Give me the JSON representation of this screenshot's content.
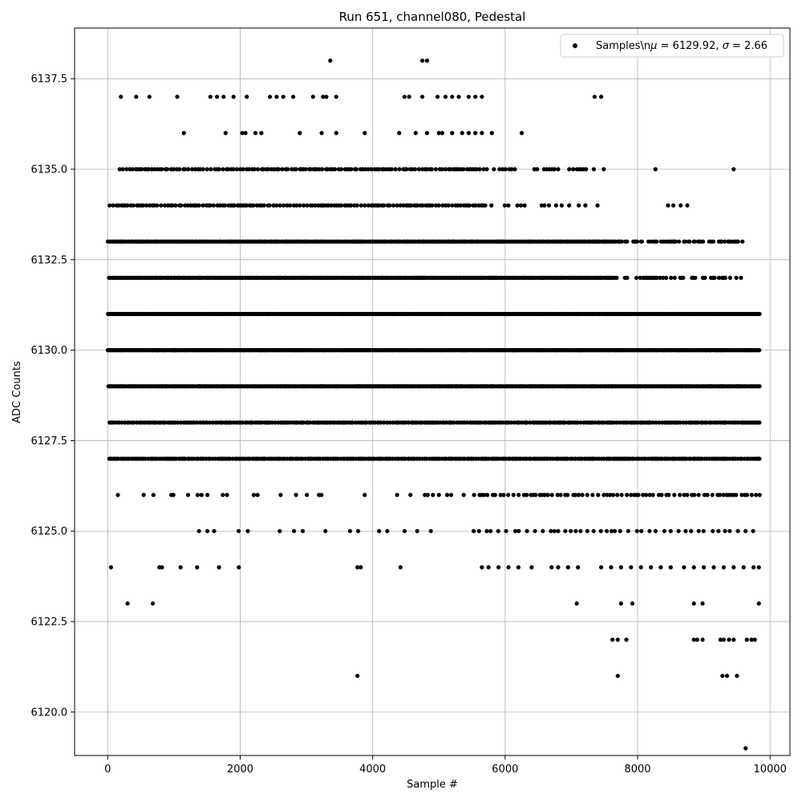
{
  "chart_data": {
    "type": "scatter",
    "title": "Run 651, channel080, Pedestal",
    "xlabel": "Sample #",
    "ylabel": "ADC Counts",
    "xlim": [
      -500,
      10300
    ],
    "ylim": [
      6118.8,
      6138.9
    ],
    "xticks": [
      0,
      2000,
      4000,
      6000,
      8000,
      10000
    ],
    "xtick_labels": [
      "0",
      "2000",
      "4000",
      "6000",
      "8000",
      "10000"
    ],
    "yticks": [
      6120.0,
      6122.5,
      6125.0,
      6127.5,
      6130.0,
      6132.5,
      6135.0,
      6137.5
    ],
    "ytick_labels": [
      "6120.0",
      "6122.5",
      "6125.0",
      "6127.5",
      "6130.0",
      "6132.5",
      "6135.0",
      "6137.5"
    ],
    "grid": true,
    "legend_position": "top-right",
    "marker_color": "#000000",
    "series": [
      {
        "name": "Samples\\n$\\mu$ = 6129.92, $\\sigma$ = 2.66",
        "x_range": [
          0,
          9850
        ],
        "description_levels": [
          6119,
          6121,
          6122,
          6123,
          6124,
          6125,
          6126,
          6127,
          6128,
          6129,
          6130,
          6131,
          6132,
          6133,
          6134,
          6135,
          6136,
          6137,
          6138
        ],
        "points": [
          [
            50,
            6124
          ],
          [
            300,
            6123
          ],
          [
            680,
            6123
          ],
          [
            780,
            6124
          ],
          [
            820,
            6124
          ],
          [
            1100,
            6124
          ],
          [
            1350,
            6124
          ],
          [
            1680,
            6124
          ],
          [
            1980,
            6124
          ],
          [
            3770,
            6124
          ],
          [
            3820,
            6124
          ],
          [
            4420,
            6124
          ],
          [
            5650,
            6124
          ],
          [
            5750,
            6124
          ],
          [
            5900,
            6124
          ],
          [
            6050,
            6124
          ],
          [
            6200,
            6124
          ],
          [
            6400,
            6124
          ],
          [
            6700,
            6124
          ],
          [
            6800,
            6124
          ],
          [
            6950,
            6124
          ],
          [
            7100,
            6124
          ],
          [
            7450,
            6124
          ],
          [
            7600,
            6124
          ],
          [
            7750,
            6124
          ],
          [
            7900,
            6124
          ],
          [
            8050,
            6124
          ],
          [
            8200,
            6124
          ],
          [
            8350,
            6124
          ],
          [
            8500,
            6124
          ],
          [
            8700,
            6124
          ],
          [
            8850,
            6124
          ],
          [
            9000,
            6124
          ],
          [
            9150,
            6124
          ],
          [
            9300,
            6124
          ],
          [
            9450,
            6124
          ],
          [
            9600,
            6124
          ],
          [
            9750,
            6124
          ],
          [
            9830,
            6124
          ],
          [
            7080,
            6123
          ],
          [
            7750,
            6123
          ],
          [
            7920,
            6123
          ],
          [
            8850,
            6123
          ],
          [
            8980,
            6123
          ],
          [
            9830,
            6123
          ],
          [
            7620,
            6122
          ],
          [
            7700,
            6122
          ],
          [
            7830,
            6122
          ],
          [
            8850,
            6122
          ],
          [
            8900,
            6122
          ],
          [
            8980,
            6122
          ],
          [
            9250,
            6122
          ],
          [
            9300,
            6122
          ],
          [
            9380,
            6122
          ],
          [
            9450,
            6122
          ],
          [
            9650,
            6122
          ],
          [
            9720,
            6122
          ],
          [
            9770,
            6122
          ],
          [
            3770,
            6121
          ],
          [
            7700,
            6121
          ],
          [
            9280,
            6121
          ],
          [
            9350,
            6121
          ],
          [
            9500,
            6121
          ],
          [
            9630,
            6119
          ],
          [
            3360,
            6138
          ],
          [
            4750,
            6138
          ],
          [
            4820,
            6138
          ],
          [
            200,
            6137
          ],
          [
            430,
            6137
          ],
          [
            630,
            6137
          ],
          [
            1050,
            6137
          ],
          [
            1550,
            6137
          ],
          [
            1650,
            6137
          ],
          [
            1750,
            6137
          ],
          [
            1900,
            6137
          ],
          [
            2100,
            6137
          ],
          [
            2450,
            6137
          ],
          [
            2550,
            6137
          ],
          [
            2650,
            6137
          ],
          [
            2800,
            6137
          ],
          [
            3100,
            6137
          ],
          [
            3250,
            6137
          ],
          [
            3300,
            6137
          ],
          [
            3450,
            6137
          ],
          [
            4480,
            6137
          ],
          [
            4550,
            6137
          ],
          [
            4750,
            6137
          ],
          [
            4980,
            6137
          ],
          [
            5100,
            6137
          ],
          [
            5200,
            6137
          ],
          [
            5300,
            6137
          ],
          [
            5450,
            6137
          ],
          [
            5550,
            6137
          ],
          [
            5650,
            6137
          ],
          [
            7350,
            6137
          ],
          [
            7450,
            6137
          ],
          [
            1150,
            6136
          ],
          [
            1780,
            6136
          ],
          [
            2030,
            6136
          ],
          [
            2080,
            6136
          ],
          [
            2230,
            6136
          ],
          [
            2320,
            6136
          ],
          [
            2900,
            6136
          ],
          [
            3230,
            6136
          ],
          [
            3450,
            6136
          ],
          [
            3880,
            6136
          ],
          [
            4400,
            6136
          ],
          [
            4650,
            6136
          ],
          [
            4820,
            6136
          ],
          [
            5000,
            6136
          ],
          [
            5050,
            6136
          ],
          [
            5200,
            6136
          ],
          [
            5350,
            6136
          ],
          [
            5450,
            6136
          ],
          [
            5550,
            6136
          ],
          [
            5650,
            6136
          ],
          [
            5800,
            6136
          ],
          [
            6250,
            6136
          ],
          [
            8270,
            6135
          ],
          [
            9450,
            6135
          ],
          [
            8460,
            6134
          ],
          [
            8540,
            6134
          ],
          [
            8650,
            6134
          ],
          [
            8750,
            6134
          ]
        ]
      }
    ]
  }
}
